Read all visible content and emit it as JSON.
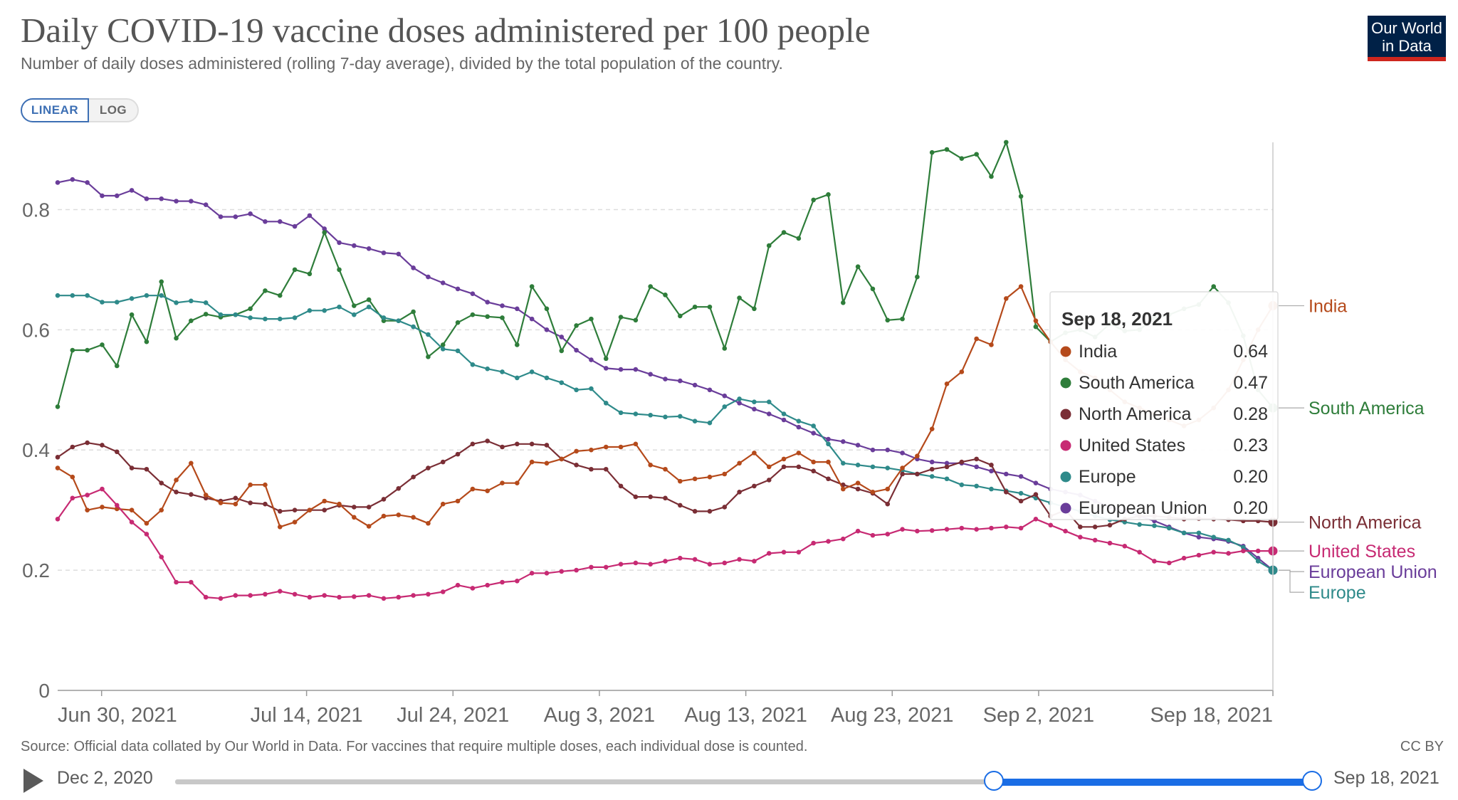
{
  "title": "Daily COVID-19 vaccine doses administered per 100 people",
  "subtitle": "Number of daily doses administered (rolling 7-day average), divided by the total population of the country.",
  "logo": {
    "line1": "Our World",
    "line2": "in Data",
    "bg": "#002147",
    "accent": "#ce261e"
  },
  "scale_toggle": {
    "linear": "LINEAR",
    "log": "LOG",
    "selected": "LINEAR"
  },
  "source": "Source: Official data collated by Our World in Data. For vaccines that require multiple doses, each individual dose is counted.",
  "license": "CC BY",
  "timeline": {
    "start": "Dec 2, 2020",
    "end": "Sep 18, 2021",
    "selected_start_fraction": 0.72,
    "selected_end_fraction": 1.0
  },
  "tooltip": {
    "date": "Sep 18, 2021",
    "rows": [
      {
        "name": "India",
        "value": "0.64",
        "color": "#b54a1b"
      },
      {
        "name": "South America",
        "value": "0.47",
        "color": "#2e7d3a"
      },
      {
        "name": "North America",
        "value": "0.28",
        "color": "#7a2e35"
      },
      {
        "name": "United States",
        "value": "0.23",
        "color": "#c72a73"
      },
      {
        "name": "Europe",
        "value": "0.20",
        "color": "#2e8a8a"
      },
      {
        "name": "European Union",
        "value": "0.20",
        "color": "#6a3d9a"
      }
    ]
  },
  "chart_data": {
    "type": "line",
    "x_start": "2021-06-27",
    "x_end": "2021-09-18",
    "xticks": [
      {
        "label": "Jun 30, 2021",
        "date": "2021-06-30"
      },
      {
        "label": "Jul 14, 2021",
        "date": "2021-07-14"
      },
      {
        "label": "Jul 24, 2021",
        "date": "2021-07-24"
      },
      {
        "label": "Aug 3, 2021",
        "date": "2021-08-03"
      },
      {
        "label": "Aug 13, 2021",
        "date": "2021-08-13"
      },
      {
        "label": "Aug 23, 2021",
        "date": "2021-08-23"
      },
      {
        "label": "Sep 2, 2021",
        "date": "2021-09-02"
      },
      {
        "label": "Sep 18, 2021",
        "date": "2021-09-18"
      }
    ],
    "yticks": [
      0,
      0.2,
      0.4,
      0.6,
      0.8
    ],
    "ytick_labels": [
      "0",
      "0.2",
      "0.4",
      "0.6",
      "0.8"
    ],
    "ylim": [
      0,
      0.9
    ],
    "grid": "horizontal dashed",
    "legend": "right end labels",
    "series": [
      {
        "name": "European Union",
        "color": "#6a3d9a",
        "values": [
          0.845,
          0.85,
          0.845,
          0.823,
          0.823,
          0.832,
          0.818,
          0.818,
          0.814,
          0.814,
          0.808,
          0.788,
          0.788,
          0.793,
          0.78,
          0.78,
          0.772,
          0.79,
          0.768,
          0.745,
          0.74,
          0.735,
          0.728,
          0.726,
          0.703,
          0.688,
          0.678,
          0.668,
          0.66,
          0.646,
          0.64,
          0.635,
          0.618,
          0.6,
          0.588,
          0.566,
          0.55,
          0.536,
          0.534,
          0.534,
          0.526,
          0.518,
          0.515,
          0.508,
          0.5,
          0.49,
          0.478,
          0.468,
          0.46,
          0.45,
          0.438,
          0.428,
          0.418,
          0.414,
          0.408,
          0.4,
          0.4,
          0.395,
          0.385,
          0.38,
          0.378,
          0.378,
          0.372,
          0.365,
          0.36,
          0.356,
          0.345,
          0.335,
          0.33,
          0.325,
          0.315,
          0.305,
          0.298,
          0.29,
          0.282,
          0.272,
          0.262,
          0.255,
          0.252,
          0.248,
          0.24,
          0.22,
          0.2
        ]
      },
      {
        "name": "South America",
        "color": "#2e7d3a",
        "values": [
          0.472,
          0.566,
          0.566,
          0.575,
          0.54,
          0.625,
          0.58,
          0.68,
          0.586,
          0.615,
          0.626,
          0.621,
          0.625,
          0.635,
          0.665,
          0.657,
          0.7,
          0.693,
          0.762,
          0.7,
          0.64,
          0.65,
          0.615,
          0.615,
          0.63,
          0.555,
          0.575,
          0.612,
          0.625,
          0.622,
          0.62,
          0.575,
          0.672,
          0.635,
          0.565,
          0.607,
          0.618,
          0.552,
          0.621,
          0.616,
          0.672,
          0.658,
          0.623,
          0.638,
          0.638,
          0.569,
          0.653,
          0.635,
          0.74,
          0.762,
          0.752,
          0.816,
          0.825,
          0.645,
          0.705,
          0.668,
          0.616,
          0.618,
          0.688,
          0.895,
          0.9,
          0.885,
          0.892,
          0.855,
          0.912,
          0.822,
          0.605,
          0.58,
          0.595,
          0.6,
          0.588,
          0.61,
          0.598,
          0.6,
          0.62,
          0.625,
          0.635,
          0.642,
          0.672,
          0.645,
          0.59,
          0.5,
          0.47
        ]
      },
      {
        "name": "Europe",
        "color": "#2e8a8a",
        "values": [
          0.657,
          0.657,
          0.657,
          0.646,
          0.646,
          0.652,
          0.657,
          0.657,
          0.645,
          0.648,
          0.645,
          0.625,
          0.625,
          0.62,
          0.618,
          0.618,
          0.62,
          0.632,
          0.632,
          0.638,
          0.625,
          0.638,
          0.62,
          0.615,
          0.605,
          0.592,
          0.568,
          0.565,
          0.542,
          0.535,
          0.53,
          0.52,
          0.53,
          0.52,
          0.512,
          0.5,
          0.502,
          0.478,
          0.462,
          0.46,
          0.458,
          0.455,
          0.456,
          0.448,
          0.445,
          0.472,
          0.485,
          0.48,
          0.48,
          0.46,
          0.448,
          0.44,
          0.41,
          0.378,
          0.375,
          0.372,
          0.37,
          0.366,
          0.36,
          0.356,
          0.352,
          0.342,
          0.34,
          0.335,
          0.332,
          0.328,
          0.32,
          0.312,
          0.305,
          0.298,
          0.29,
          0.284,
          0.28,
          0.276,
          0.274,
          0.27,
          0.262,
          0.262,
          0.255,
          0.25,
          0.238,
          0.215,
          0.2
        ]
      },
      {
        "name": "North America",
        "color": "#7a2e35",
        "values": [
          0.388,
          0.405,
          0.412,
          0.408,
          0.397,
          0.37,
          0.368,
          0.345,
          0.33,
          0.326,
          0.32,
          0.315,
          0.32,
          0.312,
          0.31,
          0.298,
          0.3,
          0.3,
          0.3,
          0.308,
          0.305,
          0.305,
          0.318,
          0.336,
          0.355,
          0.37,
          0.38,
          0.393,
          0.41,
          0.415,
          0.405,
          0.41,
          0.41,
          0.408,
          0.385,
          0.375,
          0.368,
          0.368,
          0.34,
          0.322,
          0.322,
          0.32,
          0.308,
          0.298,
          0.298,
          0.305,
          0.33,
          0.34,
          0.35,
          0.372,
          0.372,
          0.365,
          0.352,
          0.342,
          0.335,
          0.328,
          0.31,
          0.36,
          0.36,
          0.368,
          0.372,
          0.38,
          0.385,
          0.375,
          0.33,
          0.315,
          0.326,
          0.29,
          0.3,
          0.272,
          0.272,
          0.275,
          0.285,
          0.29,
          0.29,
          0.288,
          0.285,
          0.286,
          0.285,
          0.284,
          0.282,
          0.282,
          0.28
        ]
      },
      {
        "name": "India",
        "color": "#b54a1b",
        "values": [
          0.37,
          0.355,
          0.3,
          0.305,
          0.302,
          0.3,
          0.278,
          0.3,
          0.35,
          0.378,
          0.325,
          0.312,
          0.31,
          0.342,
          0.342,
          0.272,
          0.28,
          0.3,
          0.315,
          0.31,
          0.288,
          0.273,
          0.29,
          0.292,
          0.288,
          0.278,
          0.31,
          0.315,
          0.335,
          0.332,
          0.345,
          0.345,
          0.38,
          0.378,
          0.385,
          0.398,
          0.4,
          0.405,
          0.405,
          0.41,
          0.375,
          0.368,
          0.348,
          0.352,
          0.355,
          0.36,
          0.378,
          0.395,
          0.372,
          0.385,
          0.395,
          0.38,
          0.38,
          0.335,
          0.345,
          0.33,
          0.335,
          0.37,
          0.39,
          0.435,
          0.51,
          0.53,
          0.585,
          0.575,
          0.652,
          0.672,
          0.615,
          0.58,
          0.55,
          0.53,
          0.52,
          0.5,
          0.48,
          0.47,
          0.46,
          0.45,
          0.44,
          0.45,
          0.47,
          0.5,
          0.55,
          0.6,
          0.64
        ]
      },
      {
        "name": "United States",
        "color": "#c72a73",
        "values": [
          0.285,
          0.32,
          0.325,
          0.335,
          0.308,
          0.28,
          0.26,
          0.222,
          0.18,
          0.18,
          0.155,
          0.153,
          0.158,
          0.158,
          0.16,
          0.165,
          0.16,
          0.155,
          0.158,
          0.155,
          0.156,
          0.158,
          0.153,
          0.155,
          0.158,
          0.16,
          0.164,
          0.175,
          0.17,
          0.175,
          0.18,
          0.182,
          0.195,
          0.195,
          0.198,
          0.2,
          0.205,
          0.205,
          0.21,
          0.212,
          0.21,
          0.215,
          0.22,
          0.218,
          0.21,
          0.212,
          0.218,
          0.215,
          0.228,
          0.23,
          0.23,
          0.245,
          0.248,
          0.252,
          0.265,
          0.258,
          0.26,
          0.268,
          0.265,
          0.266,
          0.268,
          0.27,
          0.268,
          0.27,
          0.272,
          0.27,
          0.285,
          0.275,
          0.265,
          0.255,
          0.25,
          0.245,
          0.24,
          0.23,
          0.215,
          0.212,
          0.22,
          0.225,
          0.23,
          0.228,
          0.232,
          0.232,
          0.232
        ]
      }
    ]
  }
}
